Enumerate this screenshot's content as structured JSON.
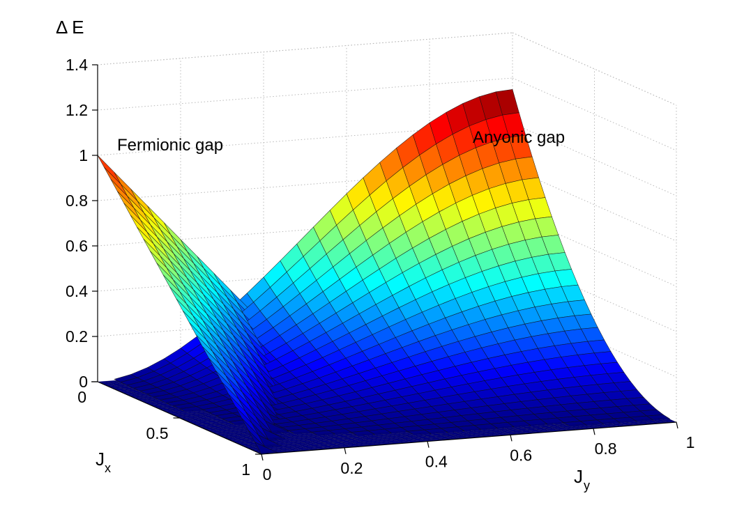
{
  "chart_data": {
    "type": "surface3d",
    "title": "",
    "zlabel": "Δ E",
    "xlabel": {
      "main": "J",
      "sub": "y"
    },
    "ylabel": {
      "main": "J",
      "sub": "x"
    },
    "x_ticks": [
      "0",
      "0.2",
      "0.4",
      "0.6",
      "0.8",
      "1"
    ],
    "y_ticks": [
      "0",
      "0.5",
      "1"
    ],
    "z_ticks": [
      "0",
      "0.2",
      "0.4",
      "0.6",
      "0.8",
      "1",
      "1.2",
      "1.4"
    ],
    "xlim": [
      0,
      1
    ],
    "ylim": [
      0,
      1
    ],
    "zlim": [
      0,
      1.4
    ],
    "grid": true,
    "colormap": "jet",
    "grid_resolution": 25,
    "annotations": [
      {
        "text": "Fermionic gap",
        "surface": "fermionic"
      },
      {
        "text": "Anyonic gap",
        "surface": "anyonic"
      }
    ],
    "series": [
      {
        "name": "fermionic",
        "description_formula": "z = max(0, 1 - 2*Jy - Jx)",
        "corner_values": {
          "Jx0_Jy0": 1.0,
          "Jx1_Jy0": 0.0,
          "Jx0_Jy1": 0.0,
          "Jx1_Jy1": 0.0
        }
      },
      {
        "name": "anyonic",
        "description_formula": "z = 1.15 * Jy^2 * (1 - Jx)^2 * (3 - 2*Jy)",
        "corner_values": {
          "Jx0_Jy0": 0.0,
          "Jx1_Jy0": 0.0,
          "Jx0_Jy1": 1.15,
          "Jx1_Jy1": 0.0
        }
      },
      {
        "name": "base",
        "description_formula": "z = 0",
        "corner_values": {
          "Jx0_Jy0": 0.0,
          "Jx1_Jy0": 0.0,
          "Jx0_Jy1": 0.0,
          "Jx1_Jy1": 0.0
        }
      }
    ]
  }
}
